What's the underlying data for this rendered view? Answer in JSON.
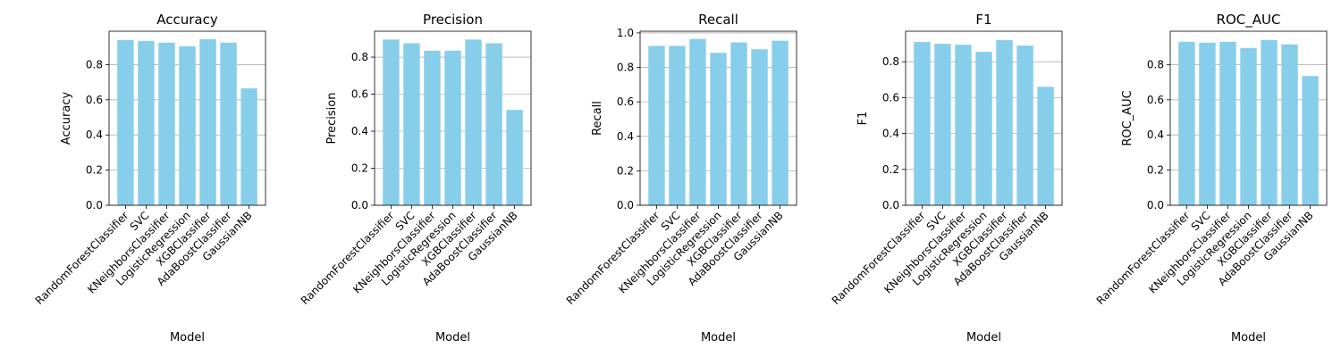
{
  "chart_data": [
    {
      "type": "bar",
      "title": "Accuracy",
      "xlabel": "Model",
      "ylabel": "Accuracy",
      "categories": [
        "RandomForestClassifier",
        "SVC",
        "KNeighborsClassifier",
        "LogisticRegression",
        "XGBClassifier",
        "AdaBoostClassifier",
        "GaussianNB"
      ],
      "values": [
        0.94,
        0.935,
        0.925,
        0.905,
        0.945,
        0.925,
        0.665
      ],
      "yticks": [
        "0.0",
        "0.2",
        "0.4",
        "0.6",
        "0.8"
      ],
      "ylim": [
        0,
        0.99
      ],
      "grid": "y",
      "color": "#87CEEB"
    },
    {
      "type": "bar",
      "title": "Precision",
      "xlabel": "Model",
      "ylabel": "Precision",
      "categories": [
        "RandomForestClassifier",
        "SVC",
        "KNeighborsClassifier",
        "LogisticRegression",
        "XGBClassifier",
        "AdaBoostClassifier",
        "GaussianNB"
      ],
      "values": [
        0.895,
        0.875,
        0.835,
        0.835,
        0.895,
        0.875,
        0.515
      ],
      "yticks": [
        "0.0",
        "0.2",
        "0.4",
        "0.6",
        "0.8"
      ],
      "ylim": [
        0,
        0.94
      ],
      "grid": "y",
      "color": "#87CEEB"
    },
    {
      "type": "bar",
      "title": "Recall",
      "xlabel": "Model",
      "ylabel": "Recall",
      "categories": [
        "RandomForestClassifier",
        "SVC",
        "KNeighborsClassifier",
        "LogisticRegression",
        "XGBClassifier",
        "AdaBoostClassifier",
        "GaussianNB"
      ],
      "values": [
        0.925,
        0.925,
        0.965,
        0.885,
        0.945,
        0.905,
        0.955
      ],
      "yticks": [
        "0.0",
        "0.2",
        "0.4",
        "0.6",
        "0.8",
        "1.0"
      ],
      "ylim": [
        0,
        1.01
      ],
      "grid": "y",
      "color": "#87CEEB"
    },
    {
      "type": "bar",
      "title": "F1",
      "xlabel": "Model",
      "ylabel": "F1",
      "categories": [
        "RandomForestClassifier",
        "SVC",
        "KNeighborsClassifier",
        "LogisticRegression",
        "XGBClassifier",
        "AdaBoostClassifier",
        "GaussianNB"
      ],
      "values": [
        0.91,
        0.9,
        0.895,
        0.855,
        0.92,
        0.89,
        0.66
      ],
      "yticks": [
        "0.0",
        "0.2",
        "0.4",
        "0.6",
        "0.8"
      ],
      "ylim": [
        0,
        0.97
      ],
      "grid": "y",
      "color": "#87CEEB"
    },
    {
      "type": "bar",
      "title": "ROC_AUC",
      "xlabel": "Model",
      "ylabel": "ROC_AUC",
      "categories": [
        "RandomForestClassifier",
        "SVC",
        "KNeighborsClassifier",
        "LogisticRegression",
        "XGBClassifier",
        "AdaBoostClassifier",
        "GaussianNB"
      ],
      "values": [
        0.93,
        0.925,
        0.93,
        0.895,
        0.94,
        0.915,
        0.735
      ],
      "yticks": [
        "0.0",
        "0.2",
        "0.4",
        "0.6",
        "0.8"
      ],
      "ylim": [
        0,
        0.99
      ],
      "grid": "y",
      "color": "#87CEEB"
    }
  ]
}
